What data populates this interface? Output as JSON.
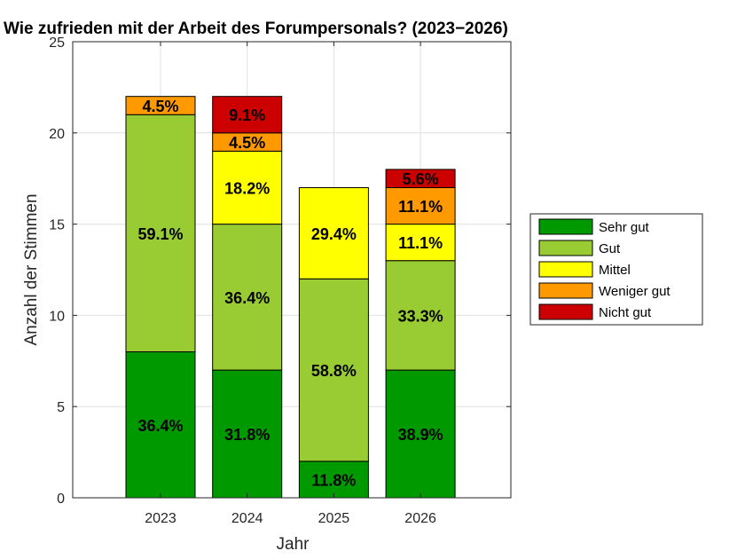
{
  "chart_data": {
    "type": "bar",
    "stacked": true,
    "title": "Wie zufrieden mit der Arbeit des Forumpersonals? (2023−2026)",
    "xlabel": "Jahr",
    "ylabel": "Anzahl der Stimmen",
    "ylim": [
      0,
      25
    ],
    "yticks": [
      0,
      5,
      10,
      15,
      20,
      25
    ],
    "grid": true,
    "legend_position": "right",
    "categories": [
      "2023",
      "2024",
      "2025",
      "2026"
    ],
    "series": [
      {
        "name": "Sehr gut",
        "color": "#009900",
        "values": [
          8,
          7,
          2,
          7
        ],
        "labels": [
          "36.4%",
          "31.8%",
          "11.8%",
          "38.9%"
        ]
      },
      {
        "name": "Gut",
        "color": "#99cc33",
        "values": [
          13,
          8,
          10,
          6
        ],
        "labels": [
          "59.1%",
          "36.4%",
          "58.8%",
          "33.3%"
        ]
      },
      {
        "name": "Mittel",
        "color": "#ffff00",
        "values": [
          0,
          4,
          5,
          2
        ],
        "labels": [
          "",
          "18.2%",
          "29.4%",
          "11.1%"
        ]
      },
      {
        "name": "Weniger gut",
        "color": "#ff9900",
        "values": [
          1,
          1,
          0,
          2
        ],
        "labels": [
          "4.5%",
          "4.5%",
          "",
          "11.1%"
        ]
      },
      {
        "name": "Nicht gut",
        "color": "#cc0000",
        "values": [
          0,
          2,
          0,
          1
        ],
        "labels": [
          "",
          "9.1%",
          "",
          "5.6%"
        ]
      }
    ]
  }
}
